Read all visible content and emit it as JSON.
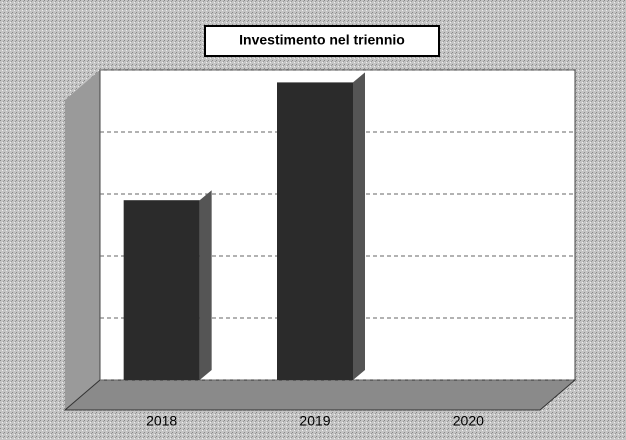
{
  "chart_data": {
    "type": "bar",
    "title": "Investimento nel triennio",
    "categories": [
      "2018",
      "2019",
      "2020"
    ],
    "values": [
      2.9,
      4.8,
      null
    ],
    "color": "#2b2b2b",
    "ylim": [
      0,
      5
    ],
    "yticks": [
      0,
      1,
      2,
      3,
      4,
      5
    ],
    "grid": true,
    "tick_labels": false
  }
}
